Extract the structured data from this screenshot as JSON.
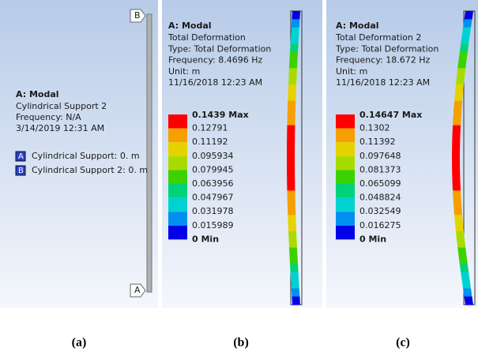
{
  "panel_a": {
    "title": "A: Modal",
    "lines": [
      "Cylindrical Support 2",
      "Frequency: N/A",
      "3/14/2019 12:31 AM"
    ],
    "legend": [
      {
        "key": "A",
        "label": "Cylindrical Support: 0. m"
      },
      {
        "key": "B",
        "label": "Cylindrical Support 2: 0. m"
      }
    ],
    "tags": {
      "top": "B",
      "bottom": "A"
    }
  },
  "panel_b": {
    "title": "A: Modal",
    "lines": [
      "Total Deformation",
      "Type: Total Deformation",
      "Frequency: 8.4696 Hz",
      "Unit: m",
      "11/16/2018 12:23 AM"
    ],
    "scale": [
      "0.1439 Max",
      "0.12791",
      "0.11192",
      "0.095934",
      "0.079945",
      "0.063956",
      "0.047967",
      "0.031978",
      "0.015989",
      "0 Min"
    ]
  },
  "panel_c": {
    "title": "A: Modal",
    "lines": [
      "Total Deformation 2",
      "Type: Total Deformation",
      "Frequency: 18.672 Hz",
      "Unit: m",
      "11/16/2018 12:23 AM"
    ],
    "scale": [
      "0.14647 Max",
      "0.1302",
      "0.11392",
      "0.097648",
      "0.081373",
      "0.065099",
      "0.048824",
      "0.032549",
      "0.016275",
      "0 Min"
    ]
  },
  "captions": [
    "(a)",
    "(b)",
    "(c)"
  ]
}
